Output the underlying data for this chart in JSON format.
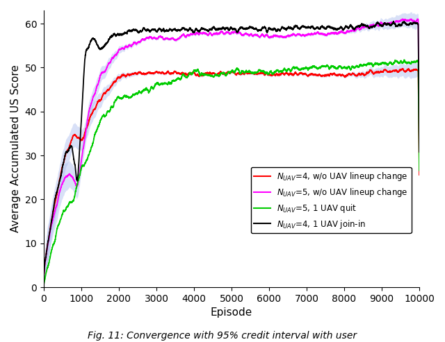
{
  "title": "",
  "xlabel": "Episode",
  "ylabel": "Average Accumulated US Score",
  "xlim": [
    0,
    10000
  ],
  "ylim": [
    0,
    63
  ],
  "yticks": [
    0,
    10,
    20,
    30,
    40,
    50,
    60
  ],
  "xticks": [
    0,
    1000,
    2000,
    3000,
    4000,
    5000,
    6000,
    7000,
    8000,
    9000,
    10000
  ],
  "legend_labels": [
    "N_{UAV}=4, w/o UAV lineup change",
    "N_{UAV}=5, w/o UAV lineup change",
    "N_{UAV}=5, 1 UAV quit",
    "N_{UAV}=4, 1 UAV join-in"
  ],
  "line_colors": [
    "#ff0000",
    "#ff00ff",
    "#00cc00",
    "#000000"
  ],
  "ci_color": "#aabbee",
  "figsize": [
    6.4,
    4.93
  ],
  "dpi": 100,
  "caption": "Fig. 11: Convergence with 95% credit interval with user"
}
